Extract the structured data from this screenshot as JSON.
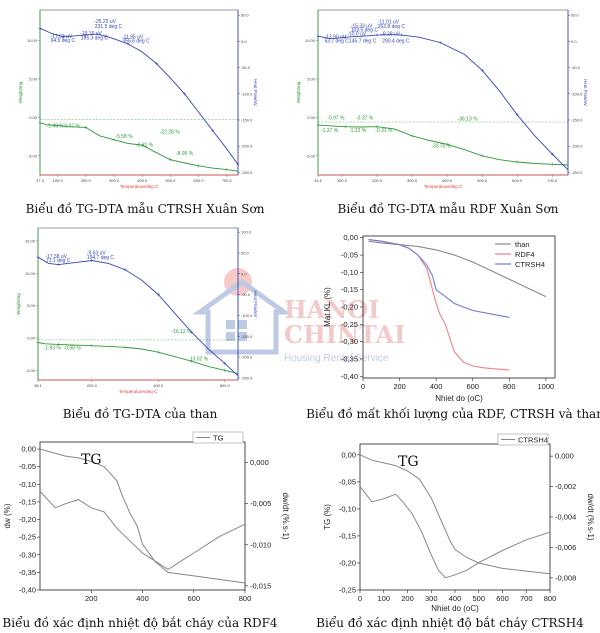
{
  "chart_data": [
    {
      "id": "p1",
      "type": "line",
      "caption": "Biểu đồ TG-DTA mẫu CTRSH Xuân Sơn",
      "xlabel": "Temperature/deg C",
      "y1label": "Weight/mg",
      "y2label": "Heat Flow/uV",
      "xticks": [
        "37.3",
        "100.0",
        "200.0",
        "300.0",
        "400.0",
        "500.0",
        "600.0",
        "700.0"
      ],
      "xlim": [
        37.3,
        740
      ],
      "y1ticks": [
        "10.00",
        "5.00",
        "0.00",
        "-5.00"
      ],
      "y1lim": [
        -7.5,
        14
      ],
      "y2ticks": [
        "50.0",
        "0.0",
        "-50.0",
        "-100.0",
        "-150.0",
        "-200.0",
        "-250.0"
      ],
      "y2lim": [
        -255,
        60
      ],
      "series": [
        {
          "name": "TG",
          "color": "#2e9a3a",
          "x": [
            37.3,
            60,
            100,
            140,
            200,
            250,
            300,
            350,
            400,
            450,
            500,
            560,
            600,
            650,
            700,
            740
          ],
          "y": [
            -0.7,
            -0.95,
            -1.05,
            -1.2,
            -1.3,
            -2.4,
            -2.9,
            -3.4,
            -3.6,
            -4.6,
            -5.5,
            -6.0,
            -6.3,
            -6.6,
            -6.8,
            -7.0
          ]
        },
        {
          "name": "DTA",
          "color": "#3446b8",
          "x": [
            37.3,
            80,
            120,
            150,
            195,
            240,
            270,
            300,
            350,
            400,
            450,
            500,
            550,
            600,
            650,
            700,
            740
          ],
          "y": [
            25,
            15,
            9,
            10,
            12,
            14,
            10,
            5,
            -5,
            -20,
            -42,
            -70,
            -100,
            -135,
            -170,
            -205,
            -235
          ]
        }
      ],
      "annotations": [
        {
          "text": "-25.25 uV",
          "x": 230,
          "y": 35,
          "axis": "y2",
          "color": "#3446b8"
        },
        {
          "text": "231.5 deg C",
          "x": 232,
          "y": 26,
          "axis": "y2",
          "color": "#3446b8"
        },
        {
          "text": "-17.62 uV",
          "x": 75,
          "y": 7,
          "axis": "y2",
          "color": "#3446b8"
        },
        {
          "text": "94.5 deg C",
          "x": 75,
          "y": -1,
          "axis": "y2",
          "color": "#3446b8"
        },
        {
          "text": "-19.16 uV",
          "x": 180,
          "y": 12,
          "axis": "y2",
          "color": "#3446b8"
        },
        {
          "text": "195.3 deg C",
          "x": 182,
          "y": 4,
          "axis": "y2",
          "color": "#3446b8"
        },
        {
          "text": "-11.95 uV",
          "x": 328,
          "y": 6,
          "axis": "y2",
          "color": "#3446b8"
        },
        {
          "text": "355.6 deg C",
          "x": 330,
          "y": -2,
          "axis": "y2",
          "color": "#3446b8"
        },
        {
          "text": "-22.28 %",
          "x": 462,
          "y": -2.1,
          "axis": "y1",
          "color": "#2e9a3a"
        },
        {
          "text": "-1.45 %",
          "x": 60,
          "y": -1.3,
          "axis": "y1",
          "color": "#2e9a3a"
        },
        {
          "text": "-0.97 %",
          "x": 118,
          "y": -1.3,
          "axis": "y1",
          "color": "#2e9a3a"
        },
        {
          "text": "-5.58 %",
          "x": 305,
          "y": -2.7,
          "axis": "y1",
          "color": "#2e9a3a"
        },
        {
          "text": "-2.31 %",
          "x": 378,
          "y": -3.8,
          "axis": "y1",
          "color": "#2e9a3a"
        },
        {
          "text": "-8.99 %",
          "x": 520,
          "y": -4.9,
          "axis": "y1",
          "color": "#2e9a3a"
        }
      ]
    },
    {
      "id": "p2",
      "type": "line",
      "caption": "Biểu đồ TG-DTA mẫu RDF Xuân Sơn",
      "xlabel": "Temperature/deg C",
      "y1label": "Weight/mg",
      "y2label": "Heat Flow/uV",
      "xticks": [
        "31.6",
        "100.0",
        "200.0",
        "300.0",
        "400.0",
        "500.0",
        "600.0",
        "700.0"
      ],
      "xlim": [
        31.6,
        745
      ],
      "y1ticks": [
        "10.00",
        "5.00",
        "0.00",
        "-5.00"
      ],
      "y1lim": [
        -7.5,
        14
      ],
      "y2ticks": [
        "50.0",
        "0.0",
        "-50.0",
        "-100.0",
        "-150.0",
        "-200.0",
        "-250.0"
      ],
      "y2lim": [
        -255,
        60
      ],
      "series": [
        {
          "name": "TG",
          "color": "#2e9a3a",
          "x": [
            31.6,
            70,
            110,
            150,
            200,
            250,
            300,
            350,
            400,
            450,
            500,
            550,
            600,
            650,
            700,
            745
          ],
          "y": [
            -1.0,
            -1.1,
            -1.2,
            -1.25,
            -1.2,
            -1.5,
            -2.4,
            -3.0,
            -3.5,
            -4.2,
            -5.0,
            -5.5,
            -5.8,
            -6.0,
            -6.1,
            -6.2
          ]
        },
        {
          "name": "DTA",
          "color": "#3446b8",
          "x": [
            31.6,
            70,
            110,
            160,
            200,
            240,
            270,
            320,
            380,
            450,
            500,
            550,
            600,
            650,
            700,
            745
          ],
          "y": [
            10,
            5,
            8,
            10,
            12,
            13,
            12,
            8,
            -2,
            -25,
            -55,
            -95,
            -140,
            -180,
            -215,
            -245
          ]
        }
      ],
      "annotations": [
        {
          "text": "-15.33 uV",
          "x": 125,
          "y": 27,
          "axis": "y2",
          "color": "#3446b8"
        },
        {
          "text": "-11.01 uV",
          "x": 202,
          "y": 34,
          "axis": "y2",
          "color": "#3446b8"
        },
        {
          "text": "262.8 deg C",
          "x": 202,
          "y": 26,
          "axis": "y2",
          "color": "#3446b8"
        },
        {
          "text": "103.5 deg C",
          "x": 125,
          "y": 19,
          "axis": "y2",
          "color": "#3446b8"
        },
        {
          "text": "-13.90 uV",
          "x": 50,
          "y": 6,
          "axis": "y2",
          "color": "#3446b8"
        },
        {
          "text": "-10.0 uV",
          "x": 115,
          "y": 11,
          "axis": "y2",
          "color": "#3446b8"
        },
        {
          "text": "-8.28 uV",
          "x": 212,
          "y": 11,
          "axis": "y2",
          "color": "#3446b8"
        },
        {
          "text": "53.7 deg C",
          "x": 50,
          "y": -2,
          "axis": "y2",
          "color": "#3446b8"
        },
        {
          "text": "145.7 deg C",
          "x": 120,
          "y": -2,
          "axis": "y2",
          "color": "#3446b8"
        },
        {
          "text": "290.4 deg C",
          "x": 215,
          "y": -2,
          "axis": "y2",
          "color": "#3446b8"
        },
        {
          "text": "-0.97 %",
          "x": 58,
          "y": -0.3,
          "axis": "y1",
          "color": "#2e9a3a"
        },
        {
          "text": "-0.37 %",
          "x": 140,
          "y": -0.3,
          "axis": "y1",
          "color": "#2e9a3a"
        },
        {
          "text": "-36.13 %",
          "x": 430,
          "y": -0.4,
          "axis": "y1",
          "color": "#2e9a3a"
        },
        {
          "text": "-1.37 %",
          "x": 40,
          "y": -1.9,
          "axis": "y1",
          "color": "#2e9a3a"
        },
        {
          "text": "-1.33 %",
          "x": 120,
          "y": -1.9,
          "axis": "y1",
          "color": "#2e9a3a"
        },
        {
          "text": "-0.31 %",
          "x": 195,
          "y": -1.9,
          "axis": "y1",
          "color": "#2e9a3a"
        },
        {
          "text": "-33.75 %",
          "x": 355,
          "y": -3.9,
          "axis": "y1",
          "color": "#2e9a3a"
        }
      ]
    },
    {
      "id": "p3",
      "type": "line",
      "caption": "Biểu đồ TG-DTA của than",
      "xlabel": "Temperature/deg C",
      "y1label": "Weight/mg",
      "y2label": "Heat Flow/uV",
      "xticks": [
        "38.1",
        "200.0",
        "400.0",
        "600.0"
      ],
      "xlim": [
        38.1,
        640
      ],
      "y1ticks": [
        "15.00",
        "10.00",
        "5.00",
        "0.00",
        "-5.00"
      ],
      "y1lim": [
        -6.5,
        17
      ],
      "y2ticks": [
        "100.0",
        "50.0",
        "0.0",
        "-50.0",
        "-100.0",
        "-150.0",
        "-200.0",
        "-250.0"
      ],
      "y2lim": [
        -255,
        110
      ],
      "series": [
        {
          "name": "TG",
          "color": "#2e9a3a",
          "x": [
            38.1,
            60,
            100,
            150,
            200,
            250,
            300,
            350,
            400,
            450,
            500,
            550,
            600,
            640
          ],
          "y": [
            -0.7,
            -0.9,
            -1.0,
            -1.1,
            -1.2,
            -1.3,
            -1.45,
            -1.7,
            -2.2,
            -2.9,
            -3.6,
            -4.4,
            -5.0,
            -5.5
          ]
        },
        {
          "name": "DTA",
          "color": "#3446b8",
          "x": [
            38.1,
            70,
            100,
            150,
            200,
            250,
            300,
            350,
            400,
            450,
            500,
            550,
            600,
            640
          ],
          "y": [
            40,
            25,
            22,
            27,
            32,
            25,
            10,
            -15,
            -50,
            -95,
            -140,
            -180,
            -215,
            -245
          ]
        }
      ],
      "annotations": [
        {
          "text": "-17.38 uV",
          "x": 60,
          "y": 38,
          "axis": "y2",
          "color": "#3446b8"
        },
        {
          "text": "73.1 deg C",
          "x": 62,
          "y": 28,
          "axis": "y2",
          "color": "#3446b8"
        },
        {
          "text": "-9.63 uV",
          "x": 185,
          "y": 46,
          "axis": "y2",
          "color": "#3446b8"
        },
        {
          "text": "194.7 deg C",
          "x": 185,
          "y": 36,
          "axis": "y2",
          "color": "#3446b8"
        },
        {
          "text": "-16.12 %",
          "x": 440,
          "y": 0.8,
          "axis": "y1",
          "color": "#2e9a3a"
        },
        {
          "text": "-1.93 %",
          "x": 55,
          "y": -1.8,
          "axis": "y1",
          "color": "#2e9a3a"
        },
        {
          "text": "-0.90 %",
          "x": 115,
          "y": -1.8,
          "axis": "y1",
          "color": "#2e9a3a"
        },
        {
          "text": "13.02 %",
          "x": 495,
          "y": -3.5,
          "axis": "y1",
          "color": "#2e9a3a"
        }
      ]
    },
    {
      "id": "p4",
      "type": "line",
      "caption": "Biểu đồ mất khối lượng của RDF, CTRSH và than",
      "xlabel": "Nhiet do (oC)",
      "ylabel": "Mat KL (%)",
      "xticks": [
        "0",
        "200",
        "400",
        "600",
        "800",
        "1000"
      ],
      "xlim": [
        0,
        1050
      ],
      "yticks": [
        "0,00",
        "-0,05",
        "-0,10",
        "-0,15",
        "-0,20",
        "-0,25",
        "-0,30",
        "-0,35",
        "-0,40"
      ],
      "ylim": [
        -0.405,
        0.005
      ],
      "legend_position": "top-right",
      "series": [
        {
          "name": "than",
          "color": "#888888",
          "x": [
            30,
            100,
            200,
            300,
            400,
            500,
            600,
            700,
            800,
            900,
            1000
          ],
          "y": [
            -0.01,
            -0.015,
            -0.02,
            -0.025,
            -0.035,
            -0.05,
            -0.07,
            -0.095,
            -0.12,
            -0.145,
            -0.17
          ]
        },
        {
          "name": "RDF4",
          "color": "#f08080",
          "x": [
            30,
            100,
            200,
            250,
            300,
            350,
            380,
            400,
            420,
            450,
            500,
            550,
            600,
            650,
            700,
            800
          ],
          "y": [
            -0.005,
            -0.01,
            -0.02,
            -0.03,
            -0.05,
            -0.09,
            -0.15,
            -0.19,
            -0.22,
            -0.25,
            -0.33,
            -0.36,
            -0.37,
            -0.375,
            -0.378,
            -0.382
          ]
        },
        {
          "name": "CTRSH4",
          "color": "#6f7ad8",
          "x": [
            30,
            100,
            200,
            250,
            300,
            350,
            380,
            400,
            450,
            500,
            550,
            600,
            700,
            800
          ],
          "y": [
            -0.005,
            -0.01,
            -0.02,
            -0.03,
            -0.05,
            -0.08,
            -0.11,
            -0.15,
            -0.17,
            -0.19,
            -0.2,
            -0.21,
            -0.22,
            -0.23
          ]
        }
      ]
    },
    {
      "id": "p5",
      "type": "line",
      "caption": "Biểu đồ xác định nhiệt độ bắt cháy của RDF4",
      "xlabel": "",
      "y1label": "dw (%)",
      "y2label": "dw/dt (%.s-1)",
      "inner_label": "TG",
      "legend": [
        "TG"
      ],
      "xticks": [
        "200",
        "400",
        "600",
        "800"
      ],
      "xlim": [
        0,
        800
      ],
      "y1ticks": [
        "0,00",
        "-0,05",
        "-0,10",
        "-0,15",
        "-0,20",
        "-0,25",
        "-0,30",
        "-0,35",
        "-0,40"
      ],
      "y1lim": [
        -0.4,
        0.02
      ],
      "y2ticks": [
        "0,000",
        "-0,005",
        "-0,010",
        "-0,015"
      ],
      "y2lim": [
        -0.0155,
        0.0025
      ],
      "series": [
        {
          "name": "TG",
          "color": "#888888",
          "axis": "y1",
          "x": [
            0,
            50,
            100,
            150,
            200,
            250,
            300,
            320,
            350,
            380,
            400,
            450,
            500,
            600,
            700,
            800
          ],
          "y": [
            0.0,
            -0.01,
            -0.02,
            -0.025,
            -0.035,
            -0.05,
            -0.09,
            -0.13,
            -0.18,
            -0.22,
            -0.27,
            -0.32,
            -0.35,
            -0.36,
            -0.37,
            -0.38
          ]
        },
        {
          "name": "dw/dt",
          "color": "#888888",
          "axis": "y2",
          "x": [
            0,
            30,
            60,
            100,
            150,
            200,
            250,
            300,
            350,
            400,
            450,
            500,
            550,
            600,
            700,
            800
          ],
          "y": [
            -0.0035,
            -0.0045,
            -0.0055,
            -0.005,
            -0.0045,
            -0.0055,
            -0.006,
            -0.008,
            -0.0095,
            -0.011,
            -0.012,
            -0.013,
            -0.012,
            -0.011,
            -0.009,
            -0.0075
          ]
        }
      ]
    },
    {
      "id": "p6",
      "type": "line",
      "caption": "Biểu đồ xác định nhiệt độ bắt cháy CTRSH4",
      "xlabel": "Nhiet do (oC)",
      "y1label": "TG (%)",
      "y2label": "dw/dt (%.s-1)",
      "inner_label": "TG",
      "legend": [
        "CTRSH4"
      ],
      "xticks": [
        "0",
        "100",
        "200",
        "300",
        "400",
        "500",
        "600",
        "700",
        "800"
      ],
      "xlim": [
        0,
        800
      ],
      "y1ticks": [
        "0,00",
        "-0,05",
        "-0,10",
        "-0,15",
        "-0,20",
        "-0,25"
      ],
      "y1lim": [
        -0.25,
        0.02
      ],
      "y2ticks": [
        "0,000",
        "-0,002",
        "-0,004",
        "-0,006",
        "-0,008"
      ],
      "y2lim": [
        -0.0088,
        0.0008
      ],
      "series": [
        {
          "name": "TG",
          "color": "#888888",
          "axis": "y1",
          "x": [
            0,
            50,
            100,
            150,
            200,
            250,
            300,
            350,
            380,
            400,
            450,
            500,
            600,
            700,
            800
          ],
          "y": [
            0.0,
            -0.01,
            -0.015,
            -0.02,
            -0.03,
            -0.045,
            -0.08,
            -0.13,
            -0.16,
            -0.175,
            -0.19,
            -0.2,
            -0.21,
            -0.215,
            -0.22
          ]
        },
        {
          "name": "dw/dt",
          "color": "#888888",
          "axis": "y2",
          "x": [
            0,
            50,
            100,
            150,
            180,
            220,
            260,
            300,
            330,
            360,
            400,
            450,
            500,
            600,
            700,
            800
          ],
          "y": [
            -0.002,
            -0.003,
            -0.0028,
            -0.0025,
            -0.003,
            -0.0038,
            -0.005,
            -0.0065,
            -0.0075,
            -0.008,
            -0.0078,
            -0.0075,
            -0.007,
            -0.0062,
            -0.0055,
            -0.005
          ]
        }
      ]
    }
  ],
  "watermark": {
    "brand_top": "HANOI",
    "brand_bottom": "CHINTAI",
    "tagline": "Housing Rental Service"
  }
}
